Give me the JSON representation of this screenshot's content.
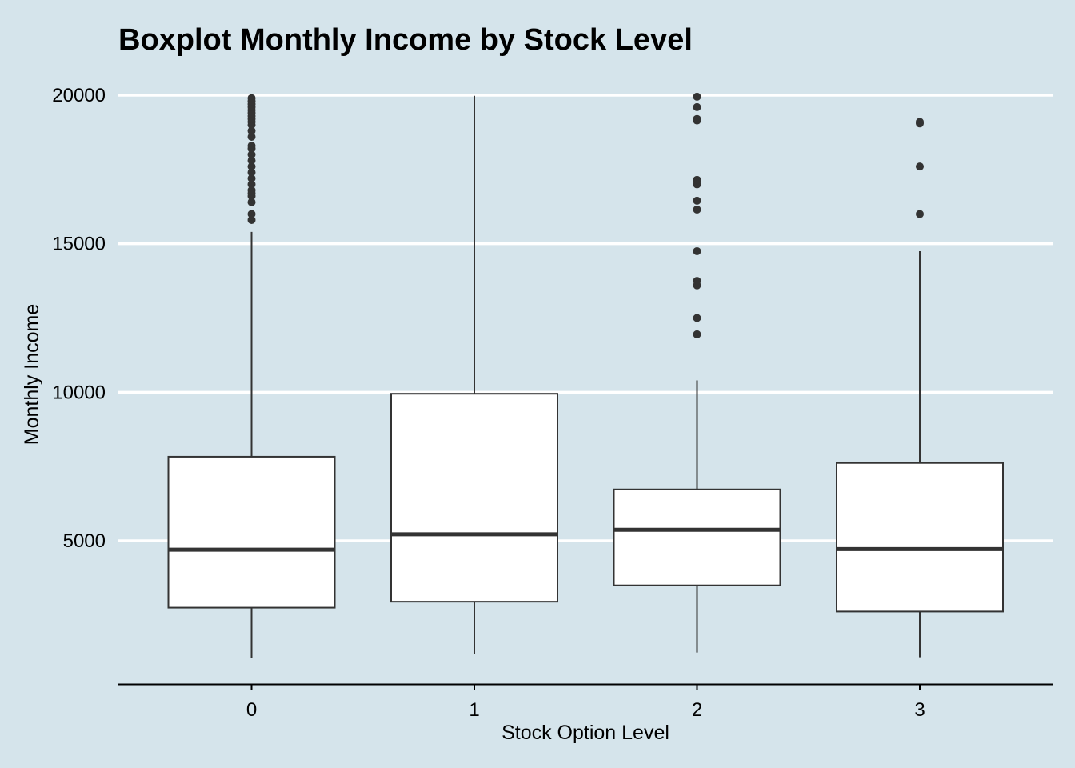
{
  "chart_data": {
    "type": "boxplot",
    "title": "Boxplot Monthly Income by Stock Level",
    "xlabel": "Stock Option Level",
    "ylabel": "Monthly Income",
    "categories": [
      "0",
      "1",
      "2",
      "3"
    ],
    "ylim": [
      0,
      20000
    ],
    "yticks": [
      5000,
      10000,
      15000,
      20000
    ],
    "yticklabels": [
      "5000",
      "10000",
      "15000",
      "20000"
    ],
    "grid": "horizontal major",
    "legend": "none",
    "colors": {
      "background": "#d5e4eb",
      "box_fill": "#ffffff",
      "box_line": "#333333",
      "grid": "#ffffff"
    },
    "boxes": [
      {
        "category": "0",
        "whisker_low": 1051,
        "q1": 2750,
        "median": 4700,
        "q3": 7830,
        "whisker_high": 15400,
        "outliers": [
          15800,
          16000,
          16400,
          16600,
          16700,
          16800,
          17000,
          17200,
          17400,
          17600,
          17800,
          18000,
          18200,
          18300,
          18600,
          18800,
          19000,
          19100,
          19200,
          19300,
          19400,
          19500,
          19600,
          19700,
          19800,
          19900
        ]
      },
      {
        "category": "1",
        "whisker_low": 1200,
        "q1": 2950,
        "median": 5220,
        "q3": 9950,
        "whisker_high": 19980,
        "outliers": []
      },
      {
        "category": "2",
        "whisker_low": 1240,
        "q1": 3500,
        "median": 5370,
        "q3": 6730,
        "whisker_high": 10400,
        "outliers": [
          11950,
          12500,
          13600,
          13750,
          14750,
          16150,
          16450,
          17000,
          17150,
          19150,
          19200,
          19600,
          19950
        ]
      },
      {
        "category": "3",
        "whisker_low": 1080,
        "q1": 2620,
        "median": 4720,
        "q3": 7620,
        "whisker_high": 14750,
        "outliers": [
          16000,
          17600,
          19050,
          19100
        ]
      }
    ]
  }
}
